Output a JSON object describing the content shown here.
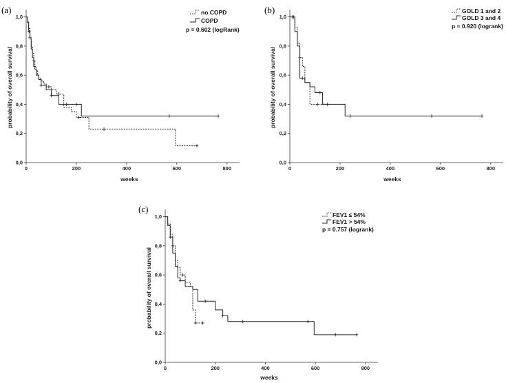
{
  "figure": {
    "panels": [
      {
        "label": "(a)",
        "ylabel": "probability of overall survival",
        "xlabel": "weeks",
        "xticks": [
          0,
          200,
          400,
          600,
          800
        ],
        "yticks": [
          "0,0",
          "0,2",
          "0,4",
          "0,6",
          "0,8",
          "1,0"
        ],
        "pvalue": "p = 0.602 (logRank)",
        "legend": [
          "no COPD",
          "COPD"
        ]
      },
      {
        "label": "(b)",
        "ylabel": "probability of overall survival",
        "xlabel": "weeks",
        "xticks": [
          0,
          200,
          400,
          600,
          800
        ],
        "yticks": [
          "0,0",
          "0,2",
          "0,4",
          "0,6",
          "0,8",
          "1,0"
        ],
        "pvalue": "p = 0.920 (logrank)",
        "legend": [
          "GOLD 1 and 2",
          "GOLD 3 and 4"
        ]
      },
      {
        "label": "(c)",
        "ylabel": "probability of overall survival",
        "xlabel": "weeks",
        "xticks": [
          0,
          200,
          400,
          600,
          800
        ],
        "yticks": [
          "0,0",
          "0,2",
          "0,4",
          "0,6",
          "0,8",
          "1,0"
        ],
        "pvalue": "p = 0.757 (logrank)",
        "legend": [
          "FEV1 ≤ 54%",
          "FEV1 > 54%"
        ]
      }
    ]
  },
  "chart_data": [
    {
      "type": "line",
      "title": "(a)",
      "xlabel": "weeks",
      "ylabel": "probability of overall survival",
      "xlim": [
        0,
        850
      ],
      "ylim": [
        0,
        1.05
      ],
      "series": [
        {
          "name": "no COPD",
          "style": "dotted",
          "x": [
            0,
            5,
            10,
            15,
            20,
            25,
            30,
            35,
            40,
            45,
            50,
            60,
            70,
            80,
            100,
            120,
            150,
            180,
            200,
            250,
            595,
            680
          ],
          "y": [
            1.0,
            0.97,
            0.92,
            0.86,
            0.8,
            0.75,
            0.7,
            0.66,
            0.63,
            0.6,
            0.58,
            0.56,
            0.54,
            0.52,
            0.5,
            0.47,
            0.38,
            0.35,
            0.31,
            0.23,
            0.115,
            0.115
          ],
          "censored_x": [
            15,
            30,
            90,
            130,
            210,
            310,
            680
          ]
        },
        {
          "name": "COPD",
          "style": "solid",
          "x": [
            0,
            5,
            10,
            15,
            20,
            25,
            30,
            35,
            40,
            50,
            60,
            80,
            100,
            130,
            200,
            220,
            765
          ],
          "y": [
            1.0,
            0.96,
            0.9,
            0.85,
            0.78,
            0.72,
            0.66,
            0.64,
            0.6,
            0.57,
            0.53,
            0.5,
            0.46,
            0.4,
            0.4,
            0.32,
            0.32
          ],
          "censored_x": [
            12,
            60,
            100,
            160,
            200,
            570,
            765
          ]
        }
      ]
    },
    {
      "type": "line",
      "title": "(b)",
      "xlabel": "weeks",
      "ylabel": "probability of overall survival",
      "xlim": [
        0,
        850
      ],
      "ylim": [
        0,
        1.05
      ],
      "series": [
        {
          "name": "GOLD 1 and 2",
          "style": "dotted",
          "x": [
            0,
            20,
            30,
            40,
            50,
            60,
            80,
            150
          ],
          "y": [
            1.0,
            0.93,
            0.82,
            0.72,
            0.66,
            0.55,
            0.4,
            0.4
          ],
          "censored_x": [
            10,
            40,
            110,
            150
          ]
        },
        {
          "name": "GOLD 3 and 4",
          "style": "solid",
          "x": [
            0,
            20,
            30,
            40,
            60,
            80,
            100,
            130,
            220,
            765
          ],
          "y": [
            1.0,
            0.9,
            0.8,
            0.58,
            0.55,
            0.52,
            0.48,
            0.4,
            0.32,
            0.32
          ],
          "censored_x": [
            15,
            50,
            120,
            240,
            565,
            765
          ]
        }
      ]
    },
    {
      "type": "line",
      "title": "(c)",
      "xlabel": "weeks",
      "ylabel": "probability of overall survival",
      "xlim": [
        0,
        850
      ],
      "ylim": [
        0,
        1.05
      ],
      "series": [
        {
          "name": "FEV1 ≤ 54%",
          "style": "dotted",
          "x": [
            0,
            10,
            20,
            30,
            40,
            50,
            60,
            80,
            100,
            110,
            120,
            150
          ],
          "y": [
            1.0,
            0.95,
            0.88,
            0.8,
            0.7,
            0.65,
            0.6,
            0.55,
            0.52,
            0.36,
            0.27,
            0.27
          ],
          "censored_x": [
            30,
            70,
            120,
            150
          ]
        },
        {
          "name": "FEV1 > 54%",
          "style": "solid",
          "x": [
            0,
            10,
            20,
            30,
            40,
            50,
            60,
            80,
            110,
            130,
            200,
            230,
            250,
            595,
            765
          ],
          "y": [
            1.0,
            0.94,
            0.86,
            0.75,
            0.66,
            0.58,
            0.56,
            0.52,
            0.5,
            0.42,
            0.36,
            0.32,
            0.28,
            0.19,
            0.19
          ],
          "censored_x": [
            20,
            60,
            160,
            230,
            310,
            570,
            680,
            765
          ]
        }
      ]
    }
  ]
}
